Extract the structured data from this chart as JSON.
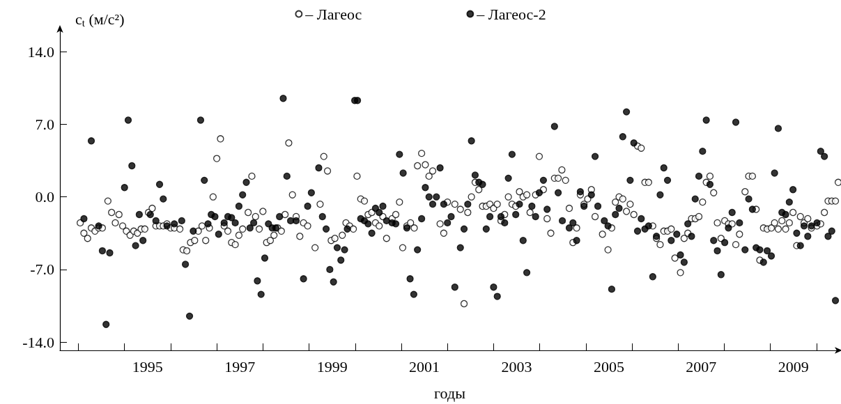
{
  "chart_data": {
    "type": "scatter",
    "xlabel": "годы",
    "ylabel": "c$_{t}$ (м/с²)",
    "legend": "top",
    "marker": "circle",
    "grid": false,
    "xlim": [
      1993.6,
      2010.5
    ],
    "ylim": [
      -14.8,
      16.3
    ],
    "xticks": [
      {
        "value": 1994,
        "label": null
      },
      {
        "value": 1995,
        "label": null
      },
      {
        "value": 1995.5,
        "label": "1995"
      },
      {
        "value": 1996,
        "label": null
      },
      {
        "value": 1997,
        "label": null
      },
      {
        "value": 1997.5,
        "label": "1997"
      },
      {
        "value": 1998,
        "label": null
      },
      {
        "value": 1999,
        "label": null
      },
      {
        "value": 1999.5,
        "label": "1999"
      },
      {
        "value": 2000,
        "label": null
      },
      {
        "value": 2001,
        "label": null
      },
      {
        "value": 2001.5,
        "label": "2001"
      },
      {
        "value": 2002,
        "label": null
      },
      {
        "value": 2003,
        "label": null
      },
      {
        "value": 2003.5,
        "label": "2003"
      },
      {
        "value": 2004,
        "label": null
      },
      {
        "value": 2005,
        "label": null
      },
      {
        "value": 2005.5,
        "label": "2005"
      },
      {
        "value": 2006,
        "label": null
      },
      {
        "value": 2007,
        "label": null
      },
      {
        "value": 2007.5,
        "label": "2007"
      },
      {
        "value": 2008,
        "label": null
      },
      {
        "value": 2009,
        "label": null
      },
      {
        "value": 2009.5,
        "label": "2009"
      },
      {
        "value": 2010,
        "label": null
      }
    ],
    "yticks": [
      {
        "value": -14,
        "label": "-14.0"
      },
      {
        "value": -7,
        "label": "-7.0"
      },
      {
        "value": 0,
        "label": "0.0"
      },
      {
        "value": 7,
        "label": "7.0"
      },
      {
        "value": 14,
        "label": "14.0"
      }
    ],
    "series": [
      {
        "name": "– Лагеос",
        "color": "#ffffff",
        "x": [
          1994.04,
          1994.12,
          1994.2,
          1994.28,
          1994.36,
          1994.44,
          1994.52,
          1994.64,
          1994.72,
          1994.8,
          1994.88,
          1994.96,
          1995.04,
          1995.12,
          1995.2,
          1995.28,
          1995.36,
          1995.44,
          1995.52,
          1995.6,
          1995.68,
          1995.76,
          1995.84,
          1995.92,
          1996.0,
          1996.08,
          1996.2,
          1996.27,
          1996.35,
          1996.43,
          1996.52,
          1996.6,
          1996.68,
          1996.76,
          1996.84,
          1996.92,
          1997.0,
          1997.08,
          1997.16,
          1997.24,
          1997.32,
          1997.4,
          1997.48,
          1997.56,
          1997.68,
          1997.76,
          1997.84,
          1997.92,
          1998.0,
          1998.08,
          1998.16,
          1998.24,
          1998.32,
          1998.4,
          1998.48,
          1998.56,
          1998.64,
          1998.72,
          1998.8,
          1998.88,
          1998.97,
          1999.13,
          1999.24,
          1999.32,
          1999.4,
          1999.48,
          1999.56,
          1999.72,
          1999.8,
          1999.88,
          1999.96,
          2000.04,
          2000.12,
          2000.2,
          2000.28,
          2000.36,
          2000.44,
          2000.52,
          2000.6,
          2000.68,
          2000.8,
          2000.88,
          2000.96,
          2001.03,
          2001.12,
          2001.2,
          2001.28,
          2001.35,
          2001.44,
          2001.52,
          2001.6,
          2001.68,
          2001.84,
          2001.92,
          2002.0,
          2002.16,
          2002.28,
          2002.36,
          2002.44,
          2002.52,
          2002.6,
          2002.68,
          2002.76,
          2002.84,
          2002.92,
          2003.0,
          2003.08,
          2003.16,
          2003.24,
          2003.32,
          2003.4,
          2003.48,
          2003.56,
          2003.64,
          2003.72,
          2003.79,
          2003.91,
          2003.99,
          2004.08,
          2004.16,
          2004.24,
          2004.32,
          2004.4,
          2004.48,
          2004.56,
          2004.64,
          2004.72,
          2004.8,
          2004.88,
          2004.96,
          2005.04,
          2005.12,
          2005.2,
          2005.36,
          2005.48,
          2005.56,
          2005.64,
          2005.72,
          2005.8,
          2005.88,
          2005.96,
          2006.04,
          2006.12,
          2006.2,
          2006.28,
          2006.36,
          2006.45,
          2006.53,
          2006.61,
          2006.69,
          2006.77,
          2006.85,
          2006.93,
          2007.05,
          2007.13,
          2007.21,
          2007.29,
          2007.37,
          2007.45,
          2007.53,
          2007.61,
          2007.69,
          2007.77,
          2007.85,
          2007.93,
          2008.01,
          2008.09,
          2008.17,
          2008.25,
          2008.33,
          2008.45,
          2008.53,
          2008.61,
          2008.69,
          2008.77,
          2008.85,
          2008.93,
          2009.02,
          2009.09,
          2009.17,
          2009.25,
          2009.33,
          2009.41,
          2009.49,
          2009.57,
          2009.65,
          2009.73,
          2009.81,
          2009.89,
          2010.01,
          2010.09,
          2010.17,
          2010.25,
          2010.33,
          2010.41,
          2010.47
        ],
        "values": [
          -2.5,
          -3.5,
          -4.0,
          -3.0,
          -3.3,
          -3.0,
          -3.0,
          -0.4,
          -1.5,
          -2.5,
          -1.7,
          -2.8,
          -3.3,
          -3.7,
          -3.3,
          -3.5,
          -3.1,
          -3.1,
          -1.5,
          -1.1,
          -2.8,
          -2.8,
          -2.8,
          -2.6,
          -3.0,
          -3.0,
          -3.1,
          -5.1,
          -5.2,
          -4.4,
          -4.2,
          -3.3,
          -2.8,
          -4.2,
          -3.0,
          0.0,
          3.7,
          5.6,
          -2.8,
          -3.3,
          -4.4,
          -4.6,
          -3.7,
          -3.1,
          -1.5,
          2.0,
          -1.9,
          -3.1,
          -1.4,
          -4.4,
          -4.2,
          -3.7,
          -3.0,
          -3.3,
          -1.7,
          5.2,
          0.2,
          -1.9,
          -3.8,
          -2.5,
          -2.8,
          -4.9,
          -0.7,
          3.9,
          2.5,
          -4.2,
          -4.0,
          -3.7,
          -2.5,
          -2.8,
          -3.1,
          2.0,
          -0.2,
          -0.4,
          -1.7,
          -1.5,
          -2.5,
          -2.8,
          -1.9,
          -4.0,
          -2.1,
          -1.7,
          -0.5,
          -4.9,
          -2.8,
          -2.5,
          -3.0,
          3.0,
          4.2,
          3.1,
          2.0,
          2.5,
          -2.6,
          -3.5,
          -0.5,
          -0.7,
          -1.2,
          -10.3,
          -1.5,
          0.0,
          1.4,
          0.7,
          -0.9,
          -0.9,
          -0.7,
          -1.1,
          -0.7,
          -2.3,
          -1.7,
          0.0,
          -0.7,
          -0.9,
          0.5,
          0.0,
          0.2,
          -1.5,
          0.2,
          3.9,
          0.7,
          -2.1,
          -3.5,
          1.8,
          1.8,
          2.6,
          1.6,
          -1.1,
          -4.4,
          -3.0,
          0.2,
          -0.7,
          -0.2,
          0.7,
          -1.9,
          -3.6,
          -5.1,
          -3.0,
          -0.5,
          0.0,
          -0.2,
          -1.4,
          -0.7,
          -1.7,
          4.9,
          4.7,
          1.4,
          1.4,
          -2.8,
          -4.0,
          -4.6,
          -3.3,
          -3.3,
          -3.1,
          -5.9,
          -7.3,
          -4.0,
          -3.5,
          -2.1,
          -2.1,
          -1.9,
          -0.5,
          1.4,
          2.0,
          0.4,
          -2.5,
          -4.0,
          -2.3,
          -2.6,
          -2.6,
          -4.6,
          -3.6,
          0.5,
          2.0,
          2.0,
          -1.2,
          -6.1,
          -3.0,
          -3.1,
          -3.0,
          -2.5,
          -3.1,
          -2.3,
          -3.1,
          -2.5,
          -1.5,
          -4.7,
          -1.9,
          -2.5,
          -2.1,
          -3.0,
          -2.8,
          -2.6,
          -1.5,
          -0.4,
          -0.4,
          -0.4,
          1.4
        ]
      },
      {
        "name": "– Лагеос-2",
        "color": "#000000",
        "x": [
          1994.12,
          1994.28,
          1994.44,
          1994.52,
          1994.6,
          1994.68,
          1995.0,
          1995.08,
          1995.16,
          1995.24,
          1995.32,
          1995.4,
          1995.56,
          1995.68,
          1995.76,
          1995.84,
          1995.92,
          1996.08,
          1996.24,
          1996.32,
          1996.41,
          1996.49,
          1996.65,
          1996.73,
          1996.81,
          1996.88,
          1996.96,
          1997.04,
          1997.16,
          1997.24,
          1997.32,
          1997.4,
          1997.48,
          1997.56,
          1997.64,
          1997.72,
          1997.8,
          1997.88,
          1997.96,
          1998.04,
          1998.12,
          1998.2,
          1998.28,
          1998.36,
          1998.44,
          1998.52,
          1998.6,
          1998.72,
          1998.88,
          1998.97,
          1999.05,
          1999.21,
          1999.29,
          1999.37,
          1999.45,
          1999.53,
          1999.61,
          1999.69,
          1999.77,
          1999.83,
          1999.99,
          2000.05,
          2000.12,
          2000.2,
          2000.28,
          2000.36,
          2000.44,
          2000.52,
          2000.6,
          2000.68,
          2000.8,
          2000.88,
          2000.96,
          2001.04,
          2001.12,
          2001.19,
          2001.27,
          2001.35,
          2001.44,
          2001.52,
          2001.6,
          2001.68,
          2001.76,
          2001.84,
          2001.92,
          2002.0,
          2002.08,
          2002.16,
          2002.28,
          2002.36,
          2002.44,
          2002.52,
          2002.6,
          2002.68,
          2002.76,
          2002.84,
          2002.92,
          2003.0,
          2003.08,
          2003.16,
          2003.24,
          2003.32,
          2003.4,
          2003.48,
          2003.56,
          2003.64,
          2003.72,
          2003.83,
          2003.91,
          2003.99,
          2004.08,
          2004.16,
          2004.32,
          2004.4,
          2004.49,
          2004.64,
          2004.72,
          2004.8,
          2004.88,
          2004.96,
          2005.12,
          2005.2,
          2005.26,
          2005.4,
          2005.48,
          2005.56,
          2005.64,
          2005.72,
          2005.8,
          2005.88,
          2005.96,
          2006.04,
          2006.12,
          2006.2,
          2006.28,
          2006.36,
          2006.45,
          2006.53,
          2006.61,
          2006.69,
          2006.77,
          2006.85,
          2006.97,
          2007.05,
          2007.13,
          2007.21,
          2007.29,
          2007.37,
          2007.45,
          2007.53,
          2007.61,
          2007.69,
          2007.77,
          2007.85,
          2007.93,
          2008.01,
          2008.09,
          2008.17,
          2008.25,
          2008.33,
          2008.45,
          2008.53,
          2008.61,
          2008.69,
          2008.77,
          2008.85,
          2008.93,
          2009.02,
          2009.09,
          2009.17,
          2009.25,
          2009.33,
          2009.41,
          2009.49,
          2009.57,
          2009.65,
          2009.73,
          2009.81,
          2009.89,
          2010.01,
          2010.09,
          2010.17,
          2010.25,
          2010.33,
          2010.41
        ],
        "values": [
          -2.1,
          5.4,
          -2.8,
          -5.2,
          -12.3,
          -5.4,
          0.9,
          7.4,
          3.0,
          -4.7,
          -1.7,
          -4.2,
          -1.7,
          -2.3,
          1.2,
          -0.2,
          -2.8,
          -2.6,
          -2.3,
          -6.5,
          -11.5,
          -3.3,
          7.4,
          1.6,
          -2.6,
          -1.7,
          -1.9,
          -3.6,
          -2.5,
          -1.9,
          -2.0,
          -2.5,
          -0.9,
          0.2,
          1.4,
          -3.0,
          -2.5,
          -8.1,
          -9.4,
          -5.9,
          -2.6,
          -3.0,
          -3.0,
          -1.9,
          9.5,
          2.0,
          -2.3,
          -2.3,
          -7.9,
          -0.9,
          0.4,
          2.8,
          -1.9,
          -3.1,
          -7.0,
          -8.2,
          -4.9,
          -6.1,
          -5.1,
          -3.1,
          9.3,
          9.3,
          -2.1,
          -2.3,
          -2.6,
          -3.5,
          -1.1,
          -1.5,
          -0.9,
          -2.3,
          -2.5,
          -2.6,
          4.1,
          2.3,
          -3.0,
          -7.9,
          -9.4,
          -5.1,
          -2.1,
          0.9,
          0.0,
          -0.7,
          0.0,
          2.8,
          -0.7,
          -2.5,
          -1.9,
          -8.7,
          -4.9,
          -3.1,
          -0.7,
          5.4,
          2.1,
          1.4,
          1.2,
          -3.1,
          -1.9,
          -8.7,
          -9.6,
          -1.9,
          -2.5,
          1.8,
          4.1,
          -1.7,
          -0.7,
          -4.2,
          -7.3,
          -0.9,
          -1.9,
          0.4,
          1.6,
          -1.2,
          6.8,
          0.4,
          -2.3,
          -3.0,
          -2.5,
          -4.2,
          0.5,
          -0.9,
          0.2,
          3.9,
          -0.9,
          -2.3,
          -2.8,
          -8.9,
          -1.7,
          -1.1,
          5.8,
          8.2,
          1.6,
          5.2,
          -3.3,
          -2.1,
          -3.1,
          -2.8,
          -7.7,
          -3.8,
          0.2,
          2.8,
          1.6,
          -4.2,
          -3.6,
          -5.6,
          -6.3,
          -2.6,
          -3.8,
          -0.2,
          2.0,
          4.4,
          7.4,
          1.2,
          -4.2,
          -5.2,
          -7.5,
          -4.4,
          -3.0,
          -1.5,
          7.2,
          -2.5,
          -5.1,
          -0.2,
          -1.2,
          -4.9,
          -5.1,
          -6.3,
          -5.2,
          -5.7,
          2.3,
          6.6,
          -1.5,
          -1.7,
          -0.5,
          0.7,
          -3.5,
          -4.7,
          -2.8,
          -3.8,
          -2.8,
          -2.5,
          4.4,
          3.9,
          -3.8,
          -3.3,
          -10.0
        ]
      }
    ]
  }
}
